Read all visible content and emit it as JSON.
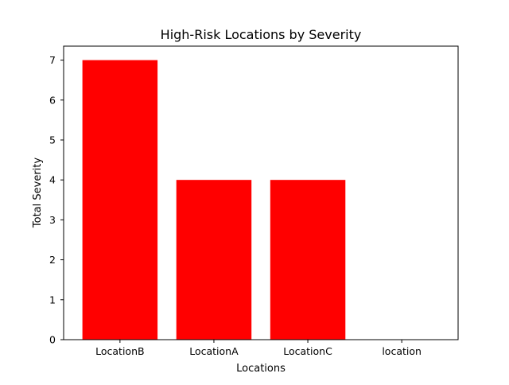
{
  "chart_data": {
    "type": "bar",
    "title": "High-Risk Locations by Severity",
    "xlabel": "Locations",
    "ylabel": "Total Severity",
    "categories": [
      "LocationB",
      "LocationA",
      "LocationC",
      "location"
    ],
    "values": [
      7,
      4,
      4,
      0
    ],
    "ylim": [
      0,
      7.35
    ],
    "yticks": [
      0,
      1,
      2,
      3,
      4,
      5,
      6,
      7
    ],
    "grid": false,
    "legend": "none",
    "bar_color": "#ff0000"
  }
}
